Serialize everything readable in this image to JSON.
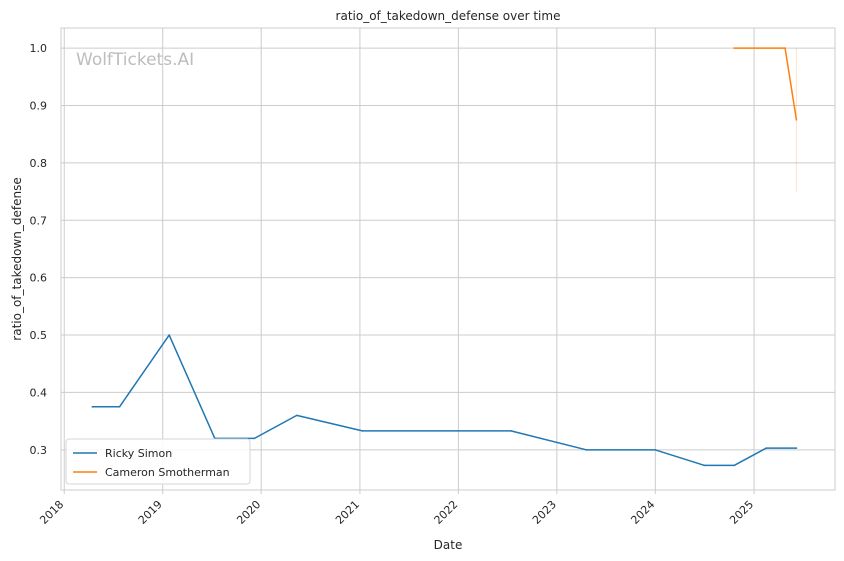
{
  "chart_data": {
    "type": "line",
    "title": "ratio_of_takedown_defense over time",
    "xlabel": "Date",
    "ylabel": "ratio_of_takedown_defense",
    "watermark": "WolfTickets.AI",
    "xlim": [
      "2017-12-20",
      "2025-10-28"
    ],
    "ylim": [
      0.23,
      1.035
    ],
    "x_ticks": [
      "2018",
      "2019",
      "2020",
      "2021",
      "2022",
      "2023",
      "2024",
      "2025"
    ],
    "y_ticks": [
      "0.3",
      "0.4",
      "0.5",
      "0.6",
      "0.7",
      "0.8",
      "0.9",
      "1.0"
    ],
    "grid": true,
    "legend_position": "lower-left",
    "series": [
      {
        "name": "Ricky Simon",
        "color": "#1f77b4",
        "points": [
          {
            "x": "2018-04-15",
            "y": 0.375
          },
          {
            "x": "2018-07-25",
            "y": 0.375
          },
          {
            "x": "2019-01-25",
            "y": 0.5
          },
          {
            "x": "2019-07-13",
            "y": 0.32
          },
          {
            "x": "2019-12-07",
            "y": 0.32
          },
          {
            "x": "2020-05-12",
            "y": 0.36
          },
          {
            "x": "2021-01-10",
            "y": 0.333
          },
          {
            "x": "2022-07-15",
            "y": 0.333
          },
          {
            "x": "2023-04-20",
            "y": 0.3
          },
          {
            "x": "2023-12-31",
            "y": 0.3
          },
          {
            "x": "2024-06-30",
            "y": 0.273
          },
          {
            "x": "2024-10-20",
            "y": 0.273
          },
          {
            "x": "2025-02-15",
            "y": 0.303
          },
          {
            "x": "2025-06-07",
            "y": 0.303
          }
        ]
      },
      {
        "name": "Cameron Smotherman",
        "color": "#ff7f0e",
        "points": [
          {
            "x": "2024-10-19",
            "y": 1.0
          },
          {
            "x": "2025-04-26",
            "y": 1.0
          },
          {
            "x": "2025-06-07",
            "y": 0.875
          }
        ],
        "band": [
          {
            "x": "2025-06-07",
            "low": 0.75,
            "high": 1.0
          }
        ]
      }
    ]
  }
}
